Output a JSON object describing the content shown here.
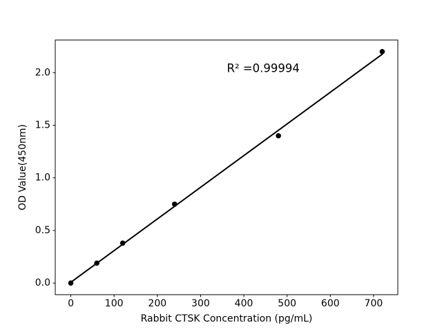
{
  "chart_data": {
    "type": "scatter",
    "title": "",
    "xlabel": "Rabbit CTSK Concentration (pg/mL)",
    "ylabel": "OD Value(450nm)",
    "x": [
      0,
      60,
      120,
      240,
      480,
      720
    ],
    "y": [
      0.0,
      0.19,
      0.38,
      0.75,
      1.4,
      2.2
    ],
    "fit_line": {
      "slope": 0.00301,
      "intercept": 0.0076,
      "x_start": 0,
      "x_end": 720
    },
    "annotation": {
      "text": "R² =0.99994",
      "x": 445,
      "y": 2.04
    },
    "xticks": [
      0,
      100,
      200,
      300,
      400,
      500,
      600,
      700
    ],
    "yticks": [
      0.0,
      0.5,
      1.0,
      1.5,
      2.0
    ],
    "xlim": [
      -36,
      756
    ],
    "ylim": [
      -0.11,
      2.31
    ],
    "grid": false,
    "legend": null,
    "colors": {
      "marker": "#000000",
      "line": "#000000",
      "axes": "#000000",
      "background": "#ffffff"
    }
  }
}
